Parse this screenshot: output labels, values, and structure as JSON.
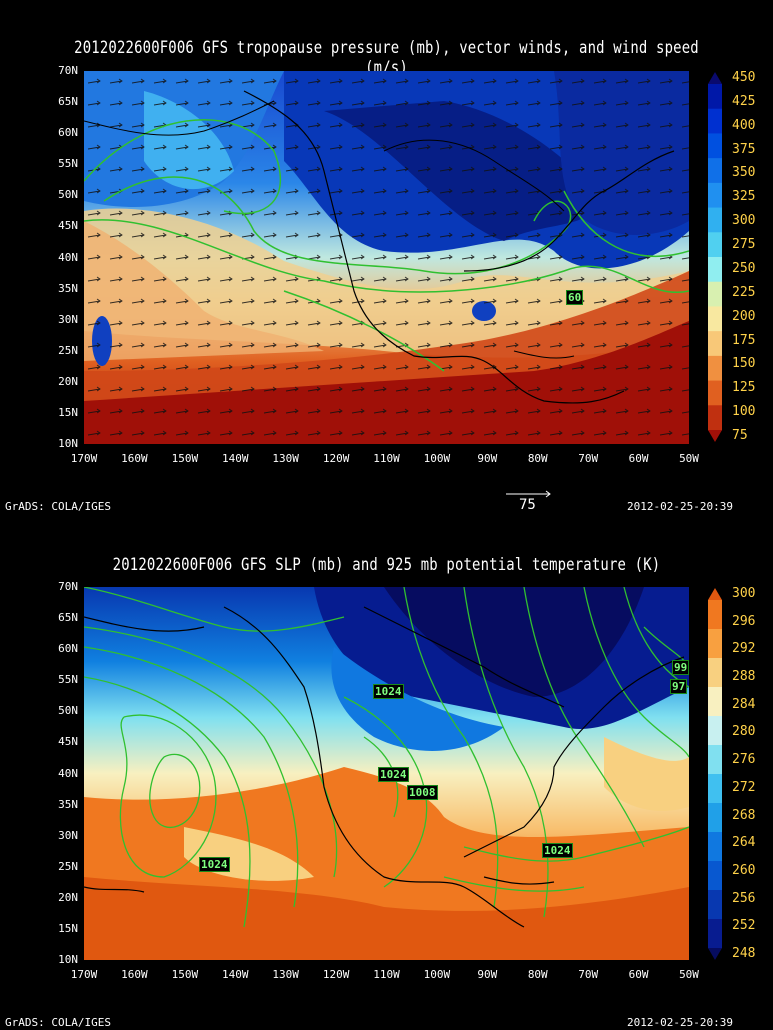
{
  "panel1": {
    "title": "2012022600F006 GFS tropopause pressure (mb), vector winds, and wind speed (m/s)",
    "lat_labels": [
      "70N",
      "65N",
      "60N",
      "55N",
      "50N",
      "45N",
      "40N",
      "35N",
      "30N",
      "25N",
      "20N",
      "15N",
      "10N"
    ],
    "lon_labels": [
      "170W",
      "160W",
      "150W",
      "140W",
      "130W",
      "120W",
      "110W",
      "100W",
      "90W",
      "80W",
      "70W",
      "60W",
      "50W"
    ],
    "colorbar": {
      "labels": [
        "450",
        "425",
        "400",
        "375",
        "350",
        "325",
        "300",
        "275",
        "250",
        "225",
        "200",
        "175",
        "150",
        "125",
        "100",
        "75"
      ],
      "colors": [
        "#0a0a6e",
        "#0018a8",
        "#0030d0",
        "#0050e0",
        "#1070e8",
        "#2090f0",
        "#30b0f0",
        "#50d0f0",
        "#90eef0",
        "#d8f0b0",
        "#f8e8a0",
        "#f8c878",
        "#f09040",
        "#e06020",
        "#c03010",
        "#a01008"
      ]
    },
    "contour_label": "60",
    "vector_reference": "75",
    "footer_left": "GrADS: COLA/IGES",
    "footer_right": "2012-02-25-20:39"
  },
  "panel2": {
    "title": "2012022600F006 GFS SLP (mb) and 925 mb potential temperature (K)",
    "lat_labels": [
      "70N",
      "65N",
      "60N",
      "55N",
      "50N",
      "45N",
      "40N",
      "35N",
      "30N",
      "25N",
      "20N",
      "15N",
      "10N"
    ],
    "lon_labels": [
      "170W",
      "160W",
      "150W",
      "140W",
      "130W",
      "120W",
      "110W",
      "100W",
      "90W",
      "80W",
      "70W",
      "60W",
      "50W"
    ],
    "colorbar": {
      "labels": [
        "300",
        "296",
        "292",
        "288",
        "284",
        "280",
        "276",
        "272",
        "268",
        "264",
        "260",
        "256",
        "252",
        "248"
      ],
      "colors": [
        "#e05810",
        "#f07820",
        "#f8a040",
        "#f8d080",
        "#f8f0c0",
        "#c8f0f0",
        "#80e0f0",
        "#40c0f0",
        "#20a0e8",
        "#1078e0",
        "#0858d0",
        "#0838b0",
        "#081c90",
        "#060c60"
      ]
    },
    "contour_labels": [
      "1024",
      "1024",
      "1008",
      "1024",
      "1024",
      "99",
      "97"
    ],
    "footer_left": "GrADS: COLA/IGES",
    "footer_right": "2012-02-25-20:39"
  }
}
